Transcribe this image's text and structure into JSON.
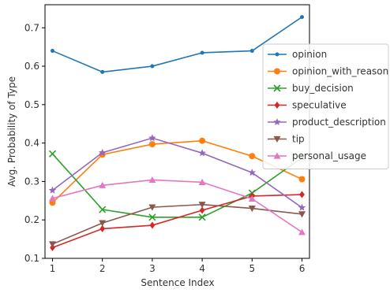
{
  "chart_data": {
    "type": "line",
    "xlabel": "Sentence Index",
    "ylabel": "Avg. Probability of Type",
    "x": [
      1,
      2,
      3,
      4,
      5,
      6
    ],
    "xlim": [
      0.85,
      6.15
    ],
    "ylim": [
      0.1,
      0.76
    ],
    "x_ticks": [
      1,
      2,
      3,
      4,
      5,
      6
    ],
    "y_ticks": [
      0.1,
      0.2,
      0.3,
      0.4,
      0.5,
      0.6,
      0.7
    ],
    "grid": false,
    "legend_position": "right",
    "series": [
      {
        "name": "opinion",
        "color": "#1f77b4",
        "marker": "point",
        "values": [
          0.64,
          0.585,
          0.6,
          0.635,
          0.64,
          0.728
        ]
      },
      {
        "name": "opinion_with_reason",
        "color": "#ff7f0e",
        "marker": "circle",
        "values": [
          0.245,
          0.37,
          0.397,
          0.406,
          0.366,
          0.306
        ]
      },
      {
        "name": "buy_decision",
        "color": "#2ca02c",
        "marker": "x",
        "values": [
          0.372,
          0.227,
          0.207,
          0.207,
          0.27,
          0.362
        ]
      },
      {
        "name": "speculative",
        "color": "#d62728",
        "marker": "diamond",
        "values": [
          0.128,
          0.177,
          0.186,
          0.225,
          0.262,
          0.266
        ]
      },
      {
        "name": "product_description",
        "color": "#9467bd",
        "marker": "star",
        "values": [
          0.277,
          0.375,
          0.413,
          0.374,
          0.323,
          0.232
        ]
      },
      {
        "name": "tip",
        "color": "#8c564b",
        "marker": "triangle-down",
        "values": [
          0.137,
          0.192,
          0.233,
          0.24,
          0.23,
          0.215
        ]
      },
      {
        "name": "personal_usage",
        "color": "#e377c2",
        "marker": "triangle-up",
        "values": [
          0.256,
          0.29,
          0.304,
          0.298,
          0.255,
          0.168
        ]
      }
    ]
  }
}
